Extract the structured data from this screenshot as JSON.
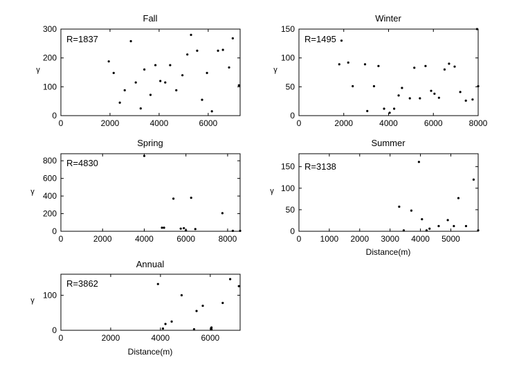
{
  "chart_data": [
    {
      "type": "scatter",
      "title": "Fall",
      "annotation": "R=1837",
      "xlabel": "",
      "ylabel": "γ",
      "xlim": [
        0,
        7300
      ],
      "ylim": [
        0,
        300
      ],
      "xticks": [
        0,
        2000,
        4000,
        6000
      ],
      "yticks": [
        0,
        100,
        200,
        300
      ],
      "grid": false,
      "points": [
        [
          1950,
          188
        ],
        [
          2150,
          148
        ],
        [
          2400,
          45
        ],
        [
          2600,
          88
        ],
        [
          2850,
          258
        ],
        [
          3050,
          115
        ],
        [
          3250,
          25
        ],
        [
          3400,
          160
        ],
        [
          3650,
          72
        ],
        [
          3850,
          175
        ],
        [
          4050,
          120
        ],
        [
          4250,
          115
        ],
        [
          4450,
          175
        ],
        [
          4700,
          88
        ],
        [
          4950,
          140
        ],
        [
          5150,
          212
        ],
        [
          5300,
          280
        ],
        [
          5550,
          225
        ],
        [
          5750,
          55
        ],
        [
          5950,
          148
        ],
        [
          6150,
          15
        ],
        [
          6400,
          225
        ],
        [
          6600,
          228
        ],
        [
          6850,
          167
        ],
        [
          7000,
          268
        ],
        [
          7250,
          105
        ]
      ]
    },
    {
      "type": "scatter",
      "title": "Winter",
      "annotation": "R=1495",
      "xlabel": "",
      "ylabel": "γ",
      "xlim": [
        0,
        8000
      ],
      "ylim": [
        0,
        150
      ],
      "xticks": [
        0,
        2000,
        4000,
        6000,
        8000
      ],
      "yticks": [
        0,
        50,
        100,
        150
      ],
      "grid": false,
      "points": [
        [
          1800,
          89
        ],
        [
          1900,
          130
        ],
        [
          2200,
          92
        ],
        [
          2400,
          51
        ],
        [
          2950,
          89
        ],
        [
          3050,
          8
        ],
        [
          3350,
          51
        ],
        [
          3550,
          86
        ],
        [
          3800,
          12
        ],
        [
          4050,
          5
        ],
        [
          4250,
          12
        ],
        [
          4450,
          35
        ],
        [
          4600,
          48
        ],
        [
          4950,
          30
        ],
        [
          5150,
          83
        ],
        [
          5400,
          30
        ],
        [
          5650,
          86
        ],
        [
          5900,
          43
        ],
        [
          6050,
          38
        ],
        [
          6250,
          31
        ],
        [
          6500,
          80
        ],
        [
          6700,
          90
        ],
        [
          6950,
          85
        ],
        [
          7200,
          41
        ],
        [
          7450,
          26
        ],
        [
          7750,
          28
        ],
        [
          7950,
          150
        ],
        [
          8000,
          51
        ]
      ]
    },
    {
      "type": "scatter",
      "title": "Spring",
      "annotation": "R=4830",
      "xlabel": "",
      "ylabel": "γ",
      "xlim": [
        0,
        8600
      ],
      "ylim": [
        0,
        880
      ],
      "xticks": [
        0,
        2000,
        4000,
        6000,
        8000
      ],
      "yticks": [
        0,
        200,
        400,
        600,
        800
      ],
      "grid": false,
      "points": [
        [
          4000,
          855
        ],
        [
          4850,
          40
        ],
        [
          4950,
          40
        ],
        [
          5400,
          370
        ],
        [
          5750,
          30
        ],
        [
          5900,
          35
        ],
        [
          6000,
          10
        ],
        [
          6250,
          380
        ],
        [
          6450,
          25
        ],
        [
          7750,
          205
        ],
        [
          8250,
          5
        ],
        [
          8600,
          5
        ]
      ]
    },
    {
      "type": "scatter",
      "title": "Summer",
      "annotation": "R=3138",
      "xlabel": "Distance(m)",
      "ylabel": "γ",
      "xlim": [
        0,
        5900
      ],
      "ylim": [
        0,
        180
      ],
      "xticks": [
        0,
        1000,
        2000,
        3000,
        4000,
        5000
      ],
      "yticks": [
        0,
        50,
        100,
        150
      ],
      "grid": false,
      "points": [
        [
          3300,
          57
        ],
        [
          3450,
          2
        ],
        [
          3700,
          48
        ],
        [
          3950,
          161
        ],
        [
          4050,
          28
        ],
        [
          4200,
          2
        ],
        [
          4300,
          6
        ],
        [
          4600,
          12
        ],
        [
          4900,
          26
        ],
        [
          5100,
          12
        ],
        [
          5250,
          77
        ],
        [
          5500,
          12
        ],
        [
          5750,
          120
        ],
        [
          5900,
          2
        ]
      ]
    },
    {
      "type": "scatter",
      "title": "Annual",
      "annotation": "R=3862",
      "xlabel": "Distance(m)",
      "ylabel": "γ",
      "xlim": [
        0,
        7200
      ],
      "ylim": [
        0,
        160
      ],
      "xticks": [
        0,
        2000,
        4000,
        6000
      ],
      "yticks": [
        0,
        100
      ],
      "grid": false,
      "points": [
        [
          3900,
          132
        ],
        [
          4100,
          5
        ],
        [
          4200,
          18
        ],
        [
          4450,
          25
        ],
        [
          4850,
          100
        ],
        [
          5350,
          3
        ],
        [
          5450,
          55
        ],
        [
          5700,
          70
        ],
        [
          6050,
          8
        ],
        [
          6050,
          3
        ],
        [
          6500,
          78
        ],
        [
          6800,
          146
        ],
        [
          7150,
          126
        ]
      ]
    }
  ]
}
